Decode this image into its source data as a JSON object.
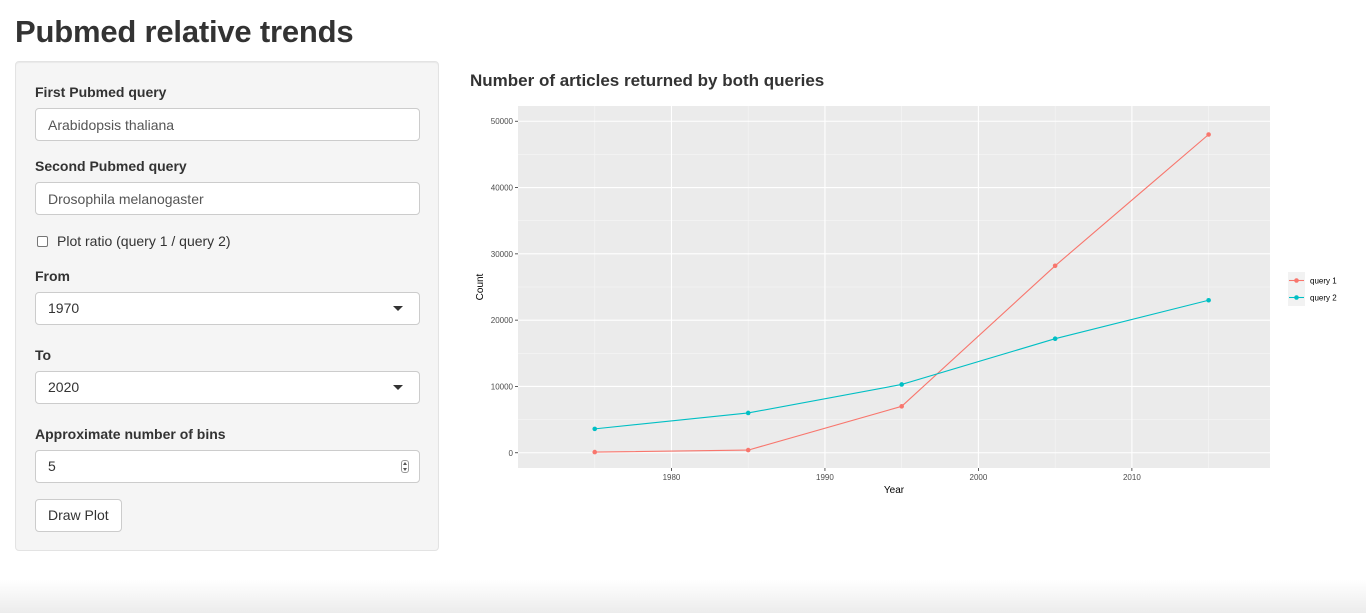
{
  "page": {
    "title": "Pubmed relative trends"
  },
  "sidebar": {
    "query1_label": "First Pubmed query",
    "query1_value": "Arabidopsis thaliana",
    "query2_label": "Second Pubmed query",
    "query2_value": "Drosophila melanogaster",
    "ratio_label": "Plot ratio (query 1 / query 2)",
    "ratio_checked": false,
    "from_label": "From",
    "from_value": "1970",
    "to_label": "To",
    "to_value": "2020",
    "bins_label": "Approximate number of bins",
    "bins_value": "5",
    "draw_button": "Draw Plot"
  },
  "plot": {
    "title": "Number of articles returned by both queries"
  },
  "chart_data": {
    "type": "line",
    "title": "Number of articles returned by both queries",
    "xlabel": "Year",
    "ylabel": "Count",
    "xlim": [
      1970,
      2019
    ],
    "ylim": [
      -2300,
      52300
    ],
    "x_ticks": [
      1980,
      1990,
      2000,
      2010
    ],
    "y_ticks": [
      0,
      10000,
      20000,
      30000,
      40000,
      50000
    ],
    "grid": true,
    "legend_position": "right",
    "background": "#ebebeb",
    "series": [
      {
        "name": "query 1",
        "color": "#f8766d",
        "x": [
          1975,
          1985,
          1995,
          2005,
          2015
        ],
        "y": [
          100,
          400,
          7000,
          28200,
          48000
        ]
      },
      {
        "name": "query 2",
        "color": "#00bfc4",
        "x": [
          1975,
          1985,
          1995,
          2005,
          2015
        ],
        "y": [
          3600,
          6000,
          10300,
          17200,
          23000
        ]
      }
    ]
  }
}
